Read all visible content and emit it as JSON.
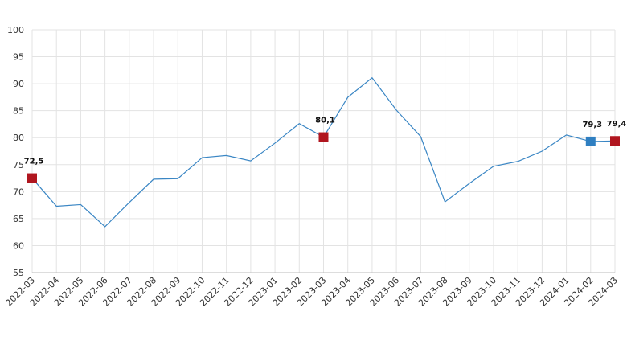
{
  "chart_data": {
    "type": "line",
    "categories": [
      "2022-03",
      "2022-04",
      "2022-05",
      "2022-06",
      "2022-07",
      "2022-08",
      "2022-09",
      "2022-10",
      "2022-11",
      "2022-12",
      "2023-01",
      "2023-02",
      "2023-03",
      "2023-04",
      "2023-05",
      "2023-06",
      "2023-07",
      "2023-08",
      "2023-09",
      "2023-10",
      "2023-11",
      "2023-12",
      "2024-01",
      "2024-02",
      "2024-03"
    ],
    "series": [
      {
        "color": "#3a86c4",
        "values": [
          72.5,
          67.3,
          67.6,
          63.5,
          68.0,
          72.3,
          72.4,
          76.3,
          76.7,
          75.7,
          79.0,
          82.6,
          80.1,
          87.5,
          91.1,
          85.1,
          80.2,
          68.1,
          71.5,
          74.7,
          75.6,
          77.5,
          80.5,
          79.3,
          79.4
        ],
        "value_labels": [
          "72,5",
          null,
          null,
          null,
          null,
          null,
          null,
          null,
          null,
          null,
          null,
          null,
          "80,1",
          null,
          null,
          null,
          null,
          null,
          null,
          null,
          null,
          null,
          null,
          "79,3",
          "79,4"
        ],
        "marker_colors": [
          "#b0161f",
          null,
          null,
          null,
          null,
          null,
          null,
          null,
          null,
          null,
          null,
          null,
          "#b0161f",
          null,
          null,
          null,
          null,
          null,
          null,
          null,
          null,
          null,
          null,
          "#2f7fc1",
          "#b0161f"
        ]
      }
    ],
    "ylim": [
      55,
      100
    ],
    "yticks": [
      55,
      60,
      65,
      70,
      75,
      80,
      85,
      90,
      95,
      100
    ],
    "grid": true
  }
}
